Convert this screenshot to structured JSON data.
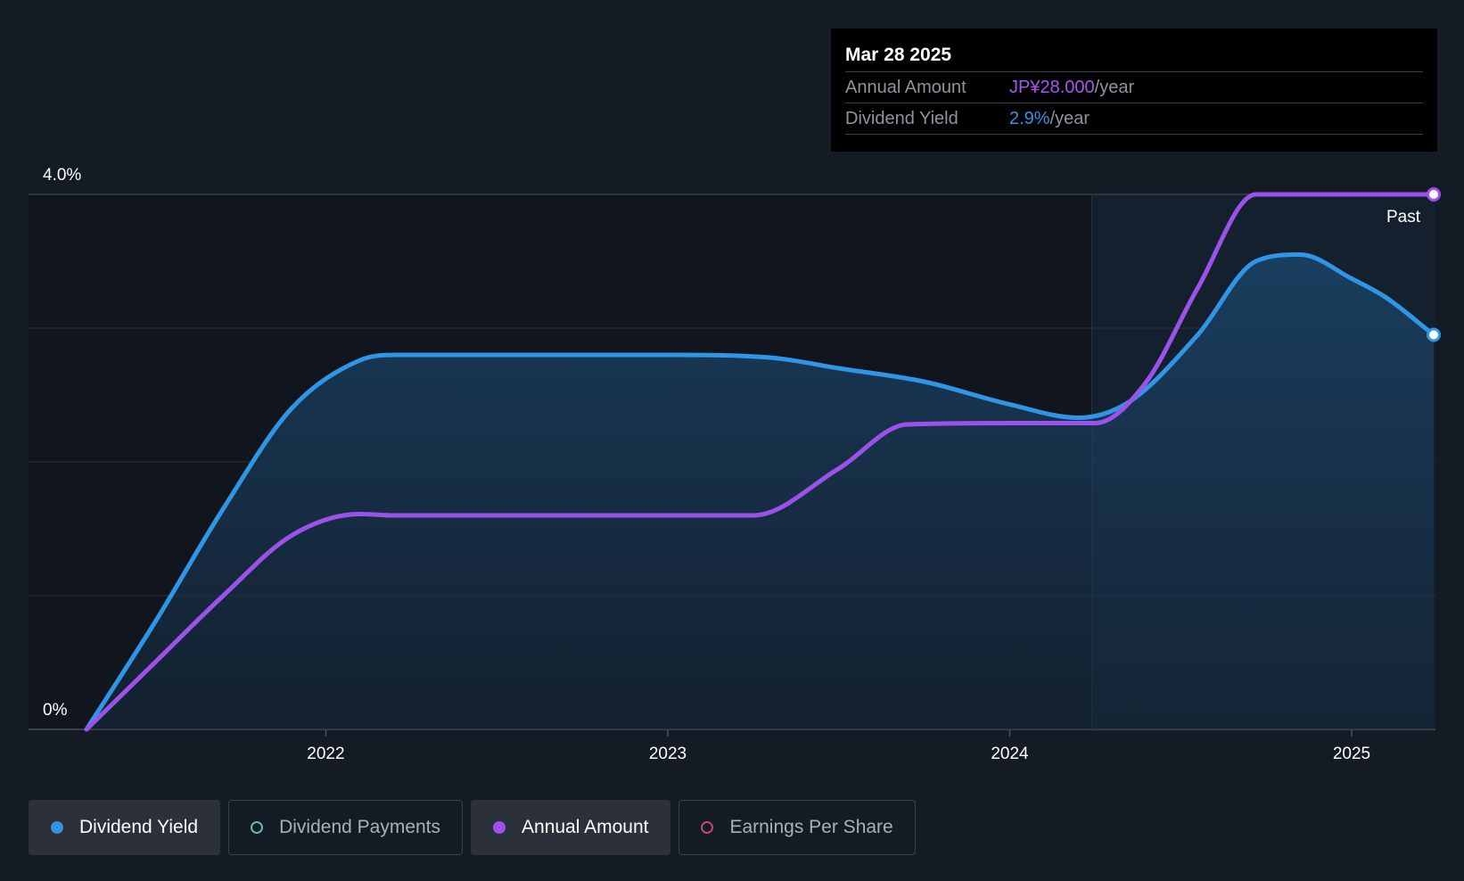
{
  "chart_data": {
    "type": "line",
    "y_axis": {
      "min": 0,
      "max": 4.0,
      "unit": "%",
      "labels": [
        "4.0%",
        "0%"
      ],
      "gridlines": [
        0,
        1.0,
        2.0,
        3.0,
        4.0
      ]
    },
    "x_axis": {
      "min": 2021.3,
      "max": 2025.24,
      "ticks": [
        {
          "value": 2022.0,
          "label": "2022"
        },
        {
          "value": 2023.0,
          "label": "2023"
        },
        {
          "value": 2024.0,
          "label": "2024"
        },
        {
          "value": 2025.0,
          "label": "2025"
        }
      ]
    },
    "past_divider": {
      "x": 2024.24,
      "label": "Past"
    },
    "series": [
      {
        "name": "Dividend Yield",
        "color": "#2f95e4",
        "filled": true,
        "points": [
          [
            2021.3,
            0.0
          ],
          [
            2021.5,
            0.8
          ],
          [
            2021.7,
            1.65
          ],
          [
            2021.9,
            2.4
          ],
          [
            2022.1,
            2.76
          ],
          [
            2022.2,
            2.8
          ],
          [
            2022.6,
            2.8
          ],
          [
            2023.0,
            2.8
          ],
          [
            2023.3,
            2.78
          ],
          [
            2023.5,
            2.7
          ],
          [
            2023.75,
            2.6
          ],
          [
            2024.0,
            2.43
          ],
          [
            2024.2,
            2.33
          ],
          [
            2024.35,
            2.45
          ],
          [
            2024.55,
            2.95
          ],
          [
            2024.72,
            3.5
          ],
          [
            2024.85,
            3.55
          ],
          [
            2025.0,
            3.37
          ],
          [
            2025.1,
            3.23
          ],
          [
            2025.24,
            2.95
          ]
        ]
      },
      {
        "name": "Annual Amount",
        "color": "#9b52ea",
        "filled": false,
        "points": [
          [
            2021.3,
            0.0
          ],
          [
            2021.5,
            0.5
          ],
          [
            2021.7,
            1.0
          ],
          [
            2021.9,
            1.45
          ],
          [
            2022.1,
            1.61
          ],
          [
            2022.2,
            1.6
          ],
          [
            2022.6,
            1.6
          ],
          [
            2023.0,
            1.6
          ],
          [
            2023.25,
            1.6
          ],
          [
            2023.5,
            1.95
          ],
          [
            2023.7,
            2.28
          ],
          [
            2024.0,
            2.29
          ],
          [
            2024.25,
            2.29
          ],
          [
            2024.4,
            2.6
          ],
          [
            2024.55,
            3.3
          ],
          [
            2024.72,
            4.0
          ],
          [
            2025.0,
            4.0
          ],
          [
            2025.24,
            4.0
          ]
        ]
      }
    ],
    "markers": [
      {
        "series": "Annual Amount",
        "x": 2025.24,
        "y": 4.0
      },
      {
        "series": "Dividend Yield",
        "x": 2025.24,
        "y": 2.95
      }
    ]
  },
  "tooltip": {
    "date": "Mar 28 2025",
    "rows": [
      {
        "label": "Annual Amount",
        "value": "JP¥28.000",
        "unit": "/year",
        "color": "#a955f0"
      },
      {
        "label": "Dividend Yield",
        "value": "2.9%",
        "unit": "/year",
        "color": "#2f95e4"
      }
    ]
  },
  "legend": [
    {
      "label": "Dividend Yield",
      "color": "#2f95e4",
      "active": true,
      "filled": true
    },
    {
      "label": "Dividend Payments",
      "color": "#4fc1b0",
      "active": false,
      "filled": false
    },
    {
      "label": "Annual Amount",
      "color": "#9b52ea",
      "active": true,
      "filled": true
    },
    {
      "label": "Earnings Per Share",
      "color": "#c2467c",
      "active": false,
      "filled": false
    }
  ]
}
